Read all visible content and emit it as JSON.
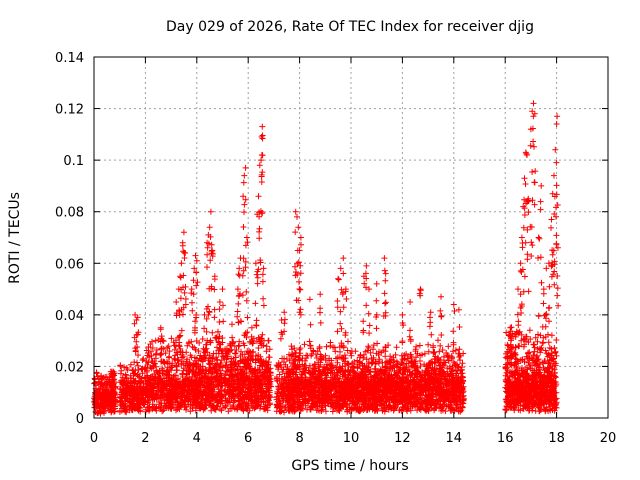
{
  "chart_data": {
    "type": "scatter",
    "title": "Day 029 of 2026, Rate Of TEC Index for receiver djig",
    "xlabel": "GPS time / hours",
    "ylabel": "ROTI / TECUs",
    "xlim": [
      0,
      20
    ],
    "ylim": [
      0,
      0.14
    ],
    "x_ticks": [
      "0",
      "2",
      "4",
      "6",
      "8",
      "10",
      "12",
      "14",
      "16",
      "18",
      "20"
    ],
    "y_ticks": [
      "0",
      "0.02",
      "0.04",
      "0.06",
      "0.08",
      "0.1",
      "0.12",
      "0.14"
    ],
    "grid": true,
    "marker": "+",
    "color": "#ff0000",
    "series": [
      {
        "name": "ROTI",
        "segments": [
          {
            "start": 0.0,
            "end": 0.85,
            "base": 0.008,
            "spread": 0.01,
            "density": 160
          },
          {
            "start": 1.0,
            "end": 2.05,
            "base": 0.01,
            "spread": 0.012,
            "density": 130
          },
          {
            "start": 2.05,
            "end": 4.2,
            "base": 0.012,
            "spread": 0.018,
            "density": 150
          },
          {
            "start": 4.2,
            "end": 5.3,
            "base": 0.013,
            "spread": 0.02,
            "density": 150
          },
          {
            "start": 5.3,
            "end": 6.9,
            "base": 0.014,
            "spread": 0.02,
            "density": 160
          },
          {
            "start": 7.1,
            "end": 7.6,
            "base": 0.01,
            "spread": 0.014,
            "density": 120
          },
          {
            "start": 7.6,
            "end": 14.4,
            "base": 0.012,
            "spread": 0.016,
            "density": 170
          },
          {
            "start": 16.0,
            "end": 18.0,
            "base": 0.012,
            "spread": 0.022,
            "density": 190
          }
        ],
        "peaks": [
          [
            0.7,
            0.018
          ],
          [
            0.75,
            0.017
          ],
          [
            1.6,
            0.04
          ],
          [
            1.65,
            0.038
          ],
          [
            1.7,
            0.039
          ],
          [
            2.4,
            0.03
          ],
          [
            2.6,
            0.035
          ],
          [
            3.2,
            0.045
          ],
          [
            3.3,
            0.05
          ],
          [
            3.35,
            0.055
          ],
          [
            3.4,
            0.06
          ],
          [
            3.45,
            0.068
          ],
          [
            3.5,
            0.072
          ],
          [
            3.55,
            0.064
          ],
          [
            3.8,
            0.05
          ],
          [
            3.9,
            0.058
          ],
          [
            3.95,
            0.063
          ],
          [
            4.0,
            0.061
          ],
          [
            4.3,
            0.04
          ],
          [
            4.4,
            0.068
          ],
          [
            4.45,
            0.071
          ],
          [
            4.5,
            0.074
          ],
          [
            4.55,
            0.08
          ],
          [
            4.6,
            0.065
          ],
          [
            4.7,
            0.055
          ],
          [
            4.9,
            0.045
          ],
          [
            5.0,
            0.05
          ],
          [
            5.6,
            0.05
          ],
          [
            5.65,
            0.058
          ],
          [
            5.7,
            0.062
          ],
          [
            5.8,
            0.086
          ],
          [
            5.85,
            0.094
          ],
          [
            5.9,
            0.097
          ],
          [
            5.95,
            0.07
          ],
          [
            6.3,
            0.06
          ],
          [
            6.35,
            0.079
          ],
          [
            6.4,
            0.086
          ],
          [
            6.45,
            0.098
          ],
          [
            6.5,
            0.1
          ],
          [
            6.52,
            0.109
          ],
          [
            6.55,
            0.113
          ],
          [
            6.6,
            0.058
          ],
          [
            7.3,
            0.038
          ],
          [
            7.4,
            0.041
          ],
          [
            7.85,
            0.08
          ],
          [
            7.9,
            0.078
          ],
          [
            7.95,
            0.074
          ],
          [
            8.0,
            0.065
          ],
          [
            8.05,
            0.07
          ],
          [
            8.4,
            0.046
          ],
          [
            8.8,
            0.048
          ],
          [
            9.5,
            0.054
          ],
          [
            9.6,
            0.058
          ],
          [
            9.7,
            0.062
          ],
          [
            9.8,
            0.05
          ],
          [
            10.5,
            0.055
          ],
          [
            10.6,
            0.059
          ],
          [
            10.7,
            0.05
          ],
          [
            11.0,
            0.052
          ],
          [
            11.3,
            0.062
          ],
          [
            11.35,
            0.056
          ],
          [
            12.0,
            0.04
          ],
          [
            12.3,
            0.045
          ],
          [
            12.7,
            0.05
          ],
          [
            13.1,
            0.041
          ],
          [
            13.5,
            0.047
          ],
          [
            14.0,
            0.044
          ],
          [
            14.2,
            0.042
          ],
          [
            16.2,
            0.035
          ],
          [
            16.5,
            0.05
          ],
          [
            16.6,
            0.06
          ],
          [
            16.65,
            0.07
          ],
          [
            16.7,
            0.082
          ],
          [
            16.75,
            0.093
          ],
          [
            16.8,
            0.103
          ],
          [
            16.85,
            0.102
          ],
          [
            16.9,
            0.085
          ],
          [
            17.0,
            0.112
          ],
          [
            17.05,
            0.119
          ],
          [
            17.1,
            0.122
          ],
          [
            17.15,
            0.118
          ],
          [
            17.3,
            0.07
          ],
          [
            17.4,
            0.09
          ],
          [
            17.5,
            0.05
          ],
          [
            17.6,
            0.058
          ],
          [
            17.7,
            0.06
          ],
          [
            17.8,
            0.077
          ],
          [
            17.85,
            0.087
          ],
          [
            17.9,
            0.094
          ],
          [
            17.95,
            0.104
          ],
          [
            18.0,
            0.114
          ],
          [
            18.02,
            0.117
          ],
          [
            18.05,
            0.066
          ]
        ]
      }
    ]
  }
}
